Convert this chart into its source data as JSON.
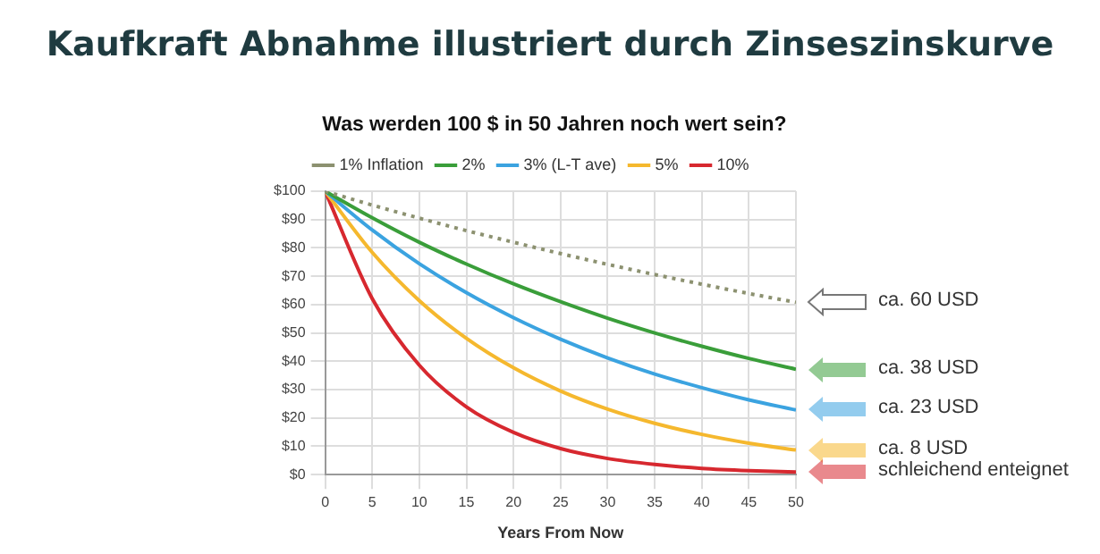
{
  "chart_data": {
    "type": "line",
    "title": "Kaufkraft Abnahme illustriert durch Zinseszinskurve",
    "subtitle": "Was werden 100 $ in 50 Jahren noch wert sein?",
    "xlabel": "Years From Now",
    "x": [
      0,
      5,
      10,
      15,
      20,
      25,
      30,
      35,
      40,
      45,
      50
    ],
    "series": [
      {
        "name": "1% Inflation",
        "color": "#8c9170",
        "line_style": "dotted",
        "values": [
          100,
          95.1,
          90.5,
          86.1,
          82,
          78,
          74.2,
          70.6,
          67.2,
          63.9,
          60.8
        ]
      },
      {
        "name": "2%",
        "color": "#3a9e3a",
        "values": [
          100,
          90.6,
          82,
          74.3,
          67.3,
          61,
          55.2,
          50,
          45.3,
          41,
          37.2
        ]
      },
      {
        "name": "3% (L-T ave)",
        "color": "#3ba3e0",
        "values": [
          100,
          86.3,
          74.4,
          64.2,
          55.4,
          47.8,
          41.2,
          35.5,
          30.7,
          26.4,
          22.8
        ]
      },
      {
        "name": "5%",
        "color": "#f5b82e",
        "values": [
          100,
          78.4,
          61.4,
          48.1,
          37.7,
          29.5,
          23.1,
          18.1,
          14.2,
          11.1,
          8.7
        ]
      },
      {
        "name": "10%",
        "color": "#d7282f",
        "values": [
          100,
          62.1,
          38.6,
          23.9,
          14.9,
          9.2,
          5.7,
          3.6,
          2.2,
          1.4,
          0.9
        ]
      }
    ],
    "xlim": [
      0,
      50
    ],
    "xticks": [
      0,
      5,
      10,
      15,
      20,
      25,
      30,
      35,
      40,
      45,
      50
    ],
    "ylim": [
      0,
      100
    ],
    "yticks": [
      {
        "value": 0,
        "label": "$0"
      },
      {
        "value": 10,
        "label": "$10"
      },
      {
        "value": 20,
        "label": "$20"
      },
      {
        "value": 30,
        "label": "$30"
      },
      {
        "value": 40,
        "label": "$40"
      },
      {
        "value": 50,
        "label": "$50"
      },
      {
        "value": 60,
        "label": "$60"
      },
      {
        "value": 70,
        "label": "$70"
      },
      {
        "value": 80,
        "label": "$80"
      },
      {
        "value": 90,
        "label": "$90"
      },
      {
        "value": 100,
        "label": "$100"
      }
    ],
    "annotations": [
      "ca. 60 USD",
      "ca. 38 USD",
      "ca. 23 USD",
      "ca. 8 USD",
      "schleichend enteignet"
    ],
    "grid": true,
    "legend": "top",
    "marker": "none"
  }
}
